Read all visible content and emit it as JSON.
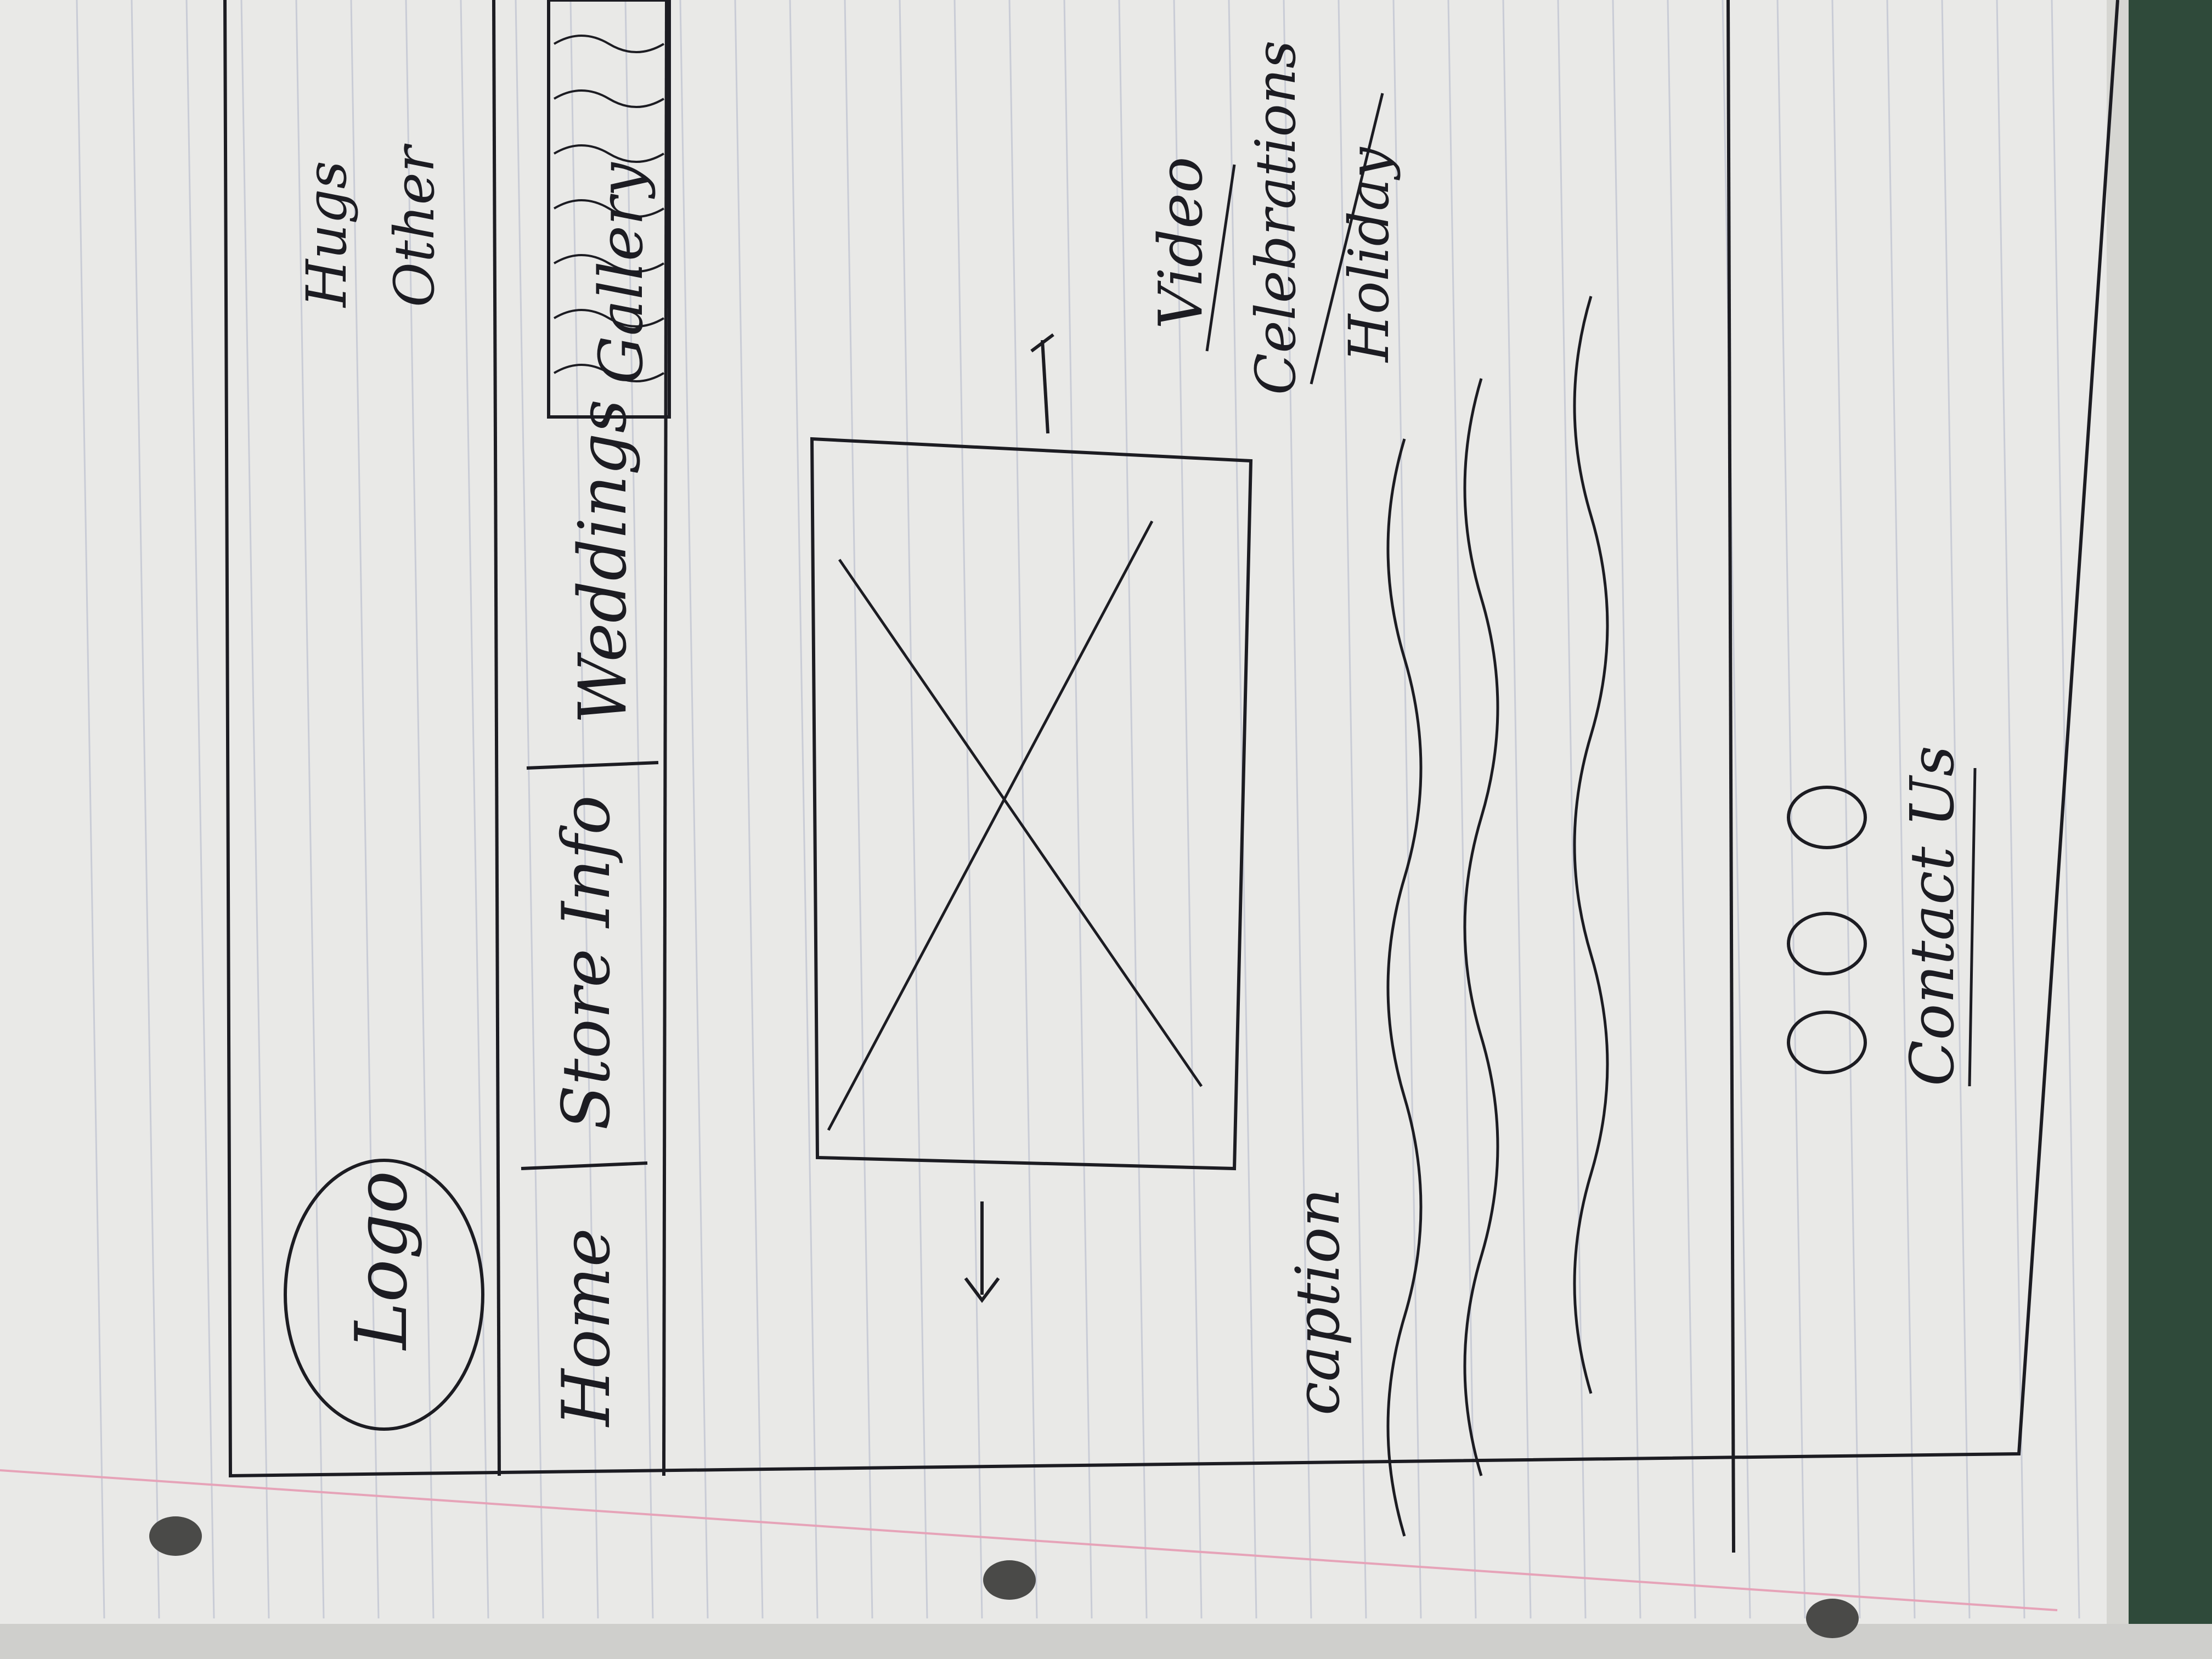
{
  "sketch": {
    "logo_label": "Logo",
    "top_right_links": [
      "Hugs",
      "Other"
    ],
    "nav_items": [
      {
        "label": "Home"
      },
      {
        "label": "Store Info"
      },
      {
        "label": "Weddings"
      },
      {
        "label": "Gallery"
      }
    ],
    "gallery_submenu": [
      "Video",
      "Celebrations",
      "Holiday"
    ],
    "caption_label": "caption",
    "footer_link": "Contact Us"
  },
  "colors": {
    "paper": "#f2f2f0",
    "ink": "#1c1c22",
    "ruled_line": "#c9ccd6",
    "margin_line": "#e6a3b8",
    "notebook_cover": "#2f4a3a"
  }
}
